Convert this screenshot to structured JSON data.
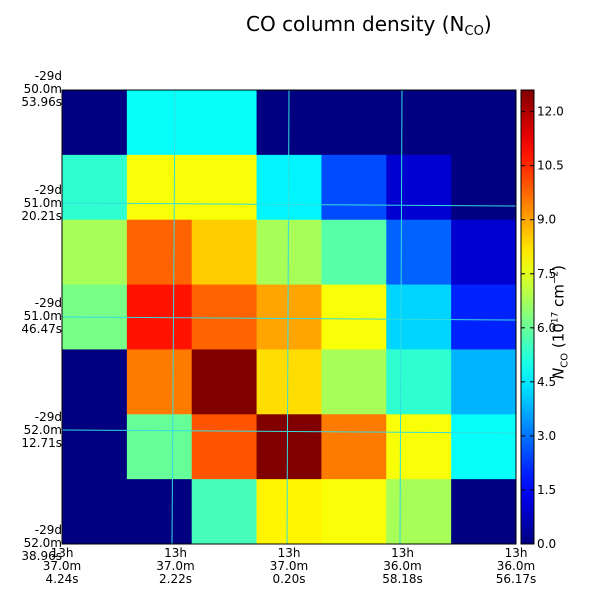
{
  "title": "CO column density (N",
  "title_sub": "CO",
  "title_end": ")",
  "chart_data": {
    "type": "heatmap",
    "title": "CO column density (N_CO)",
    "x_ticks": [
      {
        "l1": "13h",
        "l2": "37.0m",
        "l3": "4.24s"
      },
      {
        "l1": "13h",
        "l2": "37.0m",
        "l3": "2.22s"
      },
      {
        "l1": "13h",
        "l2": "37.0m",
        "l3": "0.20s"
      },
      {
        "l1": "13h",
        "l2": "36.0m",
        "l3": "58.18s"
      },
      {
        "l1": "13h",
        "l2": "36.0m",
        "l3": "56.17s"
      }
    ],
    "y_ticks": [
      {
        "l1": "-29d",
        "l2": "50.0m",
        "l3": "53.96s"
      },
      {
        "l1": "-29d",
        "l2": "51.0m",
        "l3": "20.21s"
      },
      {
        "l1": "-29d",
        "l2": "51.0m",
        "l3": "46.47s"
      },
      {
        "l1": "-29d",
        "l2": "52.0m",
        "l3": "12.71s"
      },
      {
        "l1": "-29d",
        "l2": "52.0m",
        "l3": "38.96s"
      }
    ],
    "grid": [
      [
        0.0,
        4.8,
        4.8,
        0.0,
        0.0,
        0.0,
        0.0
      ],
      [
        5.3,
        7.8,
        7.8,
        4.6,
        2.5,
        1.0,
        0.0
      ],
      [
        6.8,
        9.8,
        8.5,
        6.8,
        5.8,
        2.8,
        1.0
      ],
      [
        6.2,
        10.8,
        9.8,
        9.0,
        7.8,
        4.2,
        2.0
      ],
      [
        0.0,
        9.5,
        12.6,
        8.3,
        6.8,
        5.3,
        3.8
      ],
      [
        0.0,
        6.0,
        10.0,
        12.6,
        9.5,
        7.8,
        4.8
      ],
      [
        0.0,
        0.0,
        5.6,
        8.0,
        7.8,
        6.8,
        0.0
      ]
    ],
    "colorbar": {
      "min": 0.0,
      "max": 12.6,
      "ticks": [
        "0.0",
        "1.5",
        "3.0",
        "4.5",
        "6.0",
        "7.5",
        "9.0",
        "10.5",
        "12.0"
      ],
      "label_pre": "N",
      "label_sub": "CO",
      "label_paren_open": " (10",
      "label_sup": "17",
      "label_unit": " cm",
      "label_sup2": "−2",
      "label_paren_close": ")"
    },
    "gridline_color": "#33dddd"
  }
}
